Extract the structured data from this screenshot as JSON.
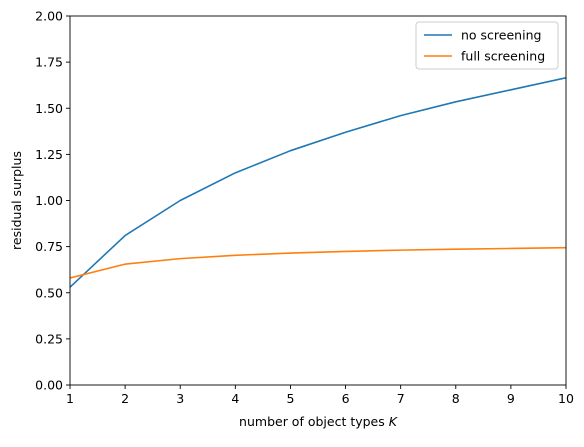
{
  "chart_data": {
    "type": "line",
    "title": "",
    "xlabel": "number of object types ",
    "xlabel_italic": "K",
    "ylabel": "residual surplus",
    "xlim": [
      1,
      10
    ],
    "ylim": [
      0,
      2
    ],
    "xticks": [
      "1",
      "2",
      "3",
      "4",
      "5",
      "6",
      "7",
      "8",
      "9",
      "10"
    ],
    "yticks": [
      "0.00",
      "0.25",
      "0.50",
      "0.75",
      "1.00",
      "1.25",
      "1.50",
      "1.75",
      "2.00"
    ],
    "grid": false,
    "legend_position": "top-right",
    "x": [
      1,
      2,
      3,
      4,
      5,
      6,
      7,
      8,
      9,
      10
    ],
    "series": [
      {
        "name": "no screening",
        "color": "#1f77b4",
        "values": [
          0.53,
          0.81,
          1.0,
          1.15,
          1.27,
          1.37,
          1.46,
          1.535,
          1.6,
          1.665
        ]
      },
      {
        "name": "full screening",
        "color": "#ff7f0e",
        "values": [
          0.58,
          0.655,
          0.685,
          0.703,
          0.715,
          0.724,
          0.731,
          0.736,
          0.74,
          0.744
        ]
      }
    ]
  }
}
